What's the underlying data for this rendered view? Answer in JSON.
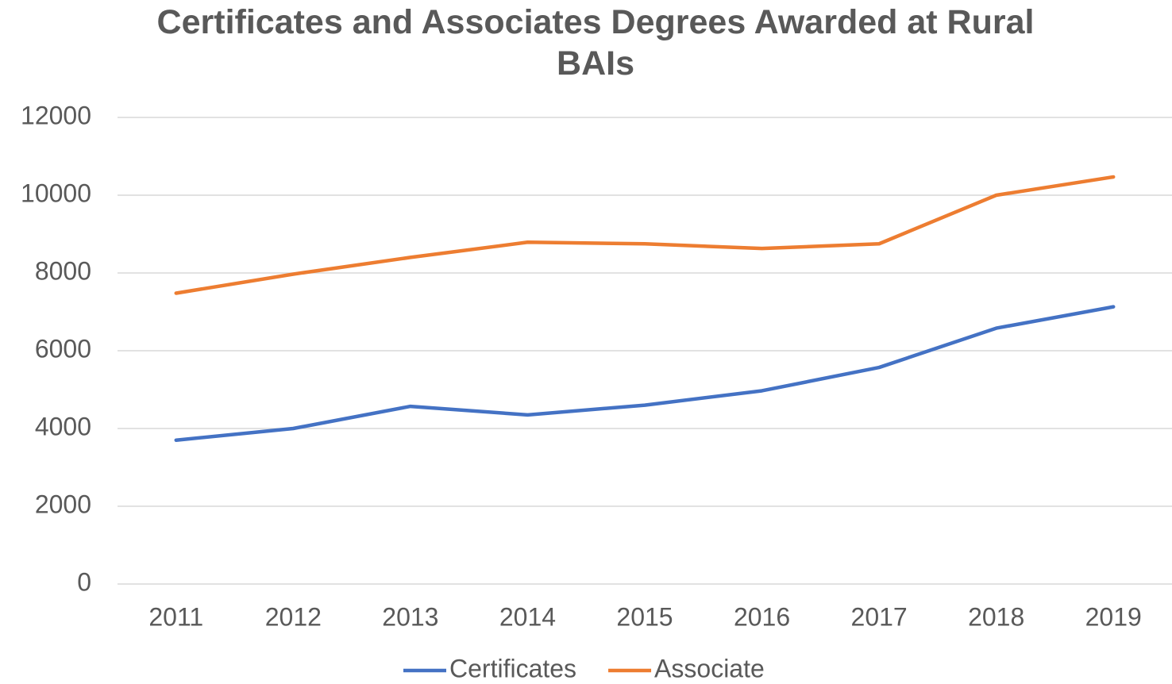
{
  "chart_data": {
    "type": "line",
    "title": "Certificates and Associates Degrees Awarded at Rural BAIs",
    "categories": [
      "2011",
      "2012",
      "2013",
      "2014",
      "2015",
      "2016",
      "2017",
      "2018",
      "2019"
    ],
    "series": [
      {
        "name": "Certificates",
        "color": "#4472c4",
        "values": [
          3700,
          4000,
          4570,
          4350,
          4600,
          4970,
          5570,
          6580,
          7130
        ]
      },
      {
        "name": "Associate",
        "color": "#ed7d31",
        "values": [
          7480,
          7970,
          8400,
          8790,
          8750,
          8630,
          8750,
          10000,
          10470
        ]
      }
    ],
    "ylim": [
      0,
      12000
    ],
    "yticks": [
      0,
      2000,
      4000,
      6000,
      8000,
      10000,
      12000
    ],
    "grid": true,
    "legend": "bottom"
  }
}
